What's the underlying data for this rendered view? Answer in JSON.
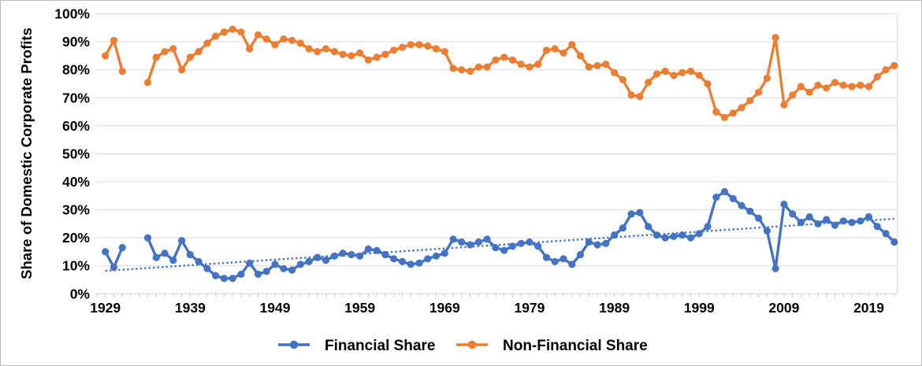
{
  "chart": {
    "y_axis_title": "Share of Domestic Corporate Profits",
    "legend": [
      {
        "label": "Financial Share",
        "color": "#4472C4"
      },
      {
        "label": "Non-Financial Share",
        "color": "#ED7D31"
      }
    ],
    "colors": {
      "financial": "#4472C4",
      "nonfinancial": "#ED7D31",
      "trendline": "#4472C4",
      "gridline": "#D9D9D9",
      "tick": "#C8C8C8",
      "text": "#000000"
    }
  },
  "chart_data": {
    "type": "line",
    "title": "",
    "xlabel": "",
    "ylabel": "Share of Domestic Corporate Profits",
    "ylim": [
      0,
      100
    ],
    "xlim": [
      1928,
      2023
    ],
    "grid": true,
    "legend_position": "bottom",
    "y_tick_labels": [
      "0%",
      "10%",
      "20%",
      "30%",
      "40%",
      "50%",
      "60%",
      "70%",
      "80%",
      "90%",
      "100%"
    ],
    "x_tick_labels": [
      1929,
      1939,
      1949,
      1959,
      1969,
      1979,
      1989,
      1999,
      2009,
      2019
    ],
    "note": "values are percent; nulls in 1932-1933 are missing data (line gap)",
    "x": [
      1929,
      1930,
      1931,
      1932,
      1933,
      1934,
      1935,
      1936,
      1937,
      1938,
      1939,
      1940,
      1941,
      1942,
      1943,
      1944,
      1945,
      1946,
      1947,
      1948,
      1949,
      1950,
      1951,
      1952,
      1953,
      1954,
      1955,
      1956,
      1957,
      1958,
      1959,
      1960,
      1961,
      1962,
      1963,
      1964,
      1965,
      1966,
      1967,
      1968,
      1969,
      1970,
      1971,
      1972,
      1973,
      1974,
      1975,
      1976,
      1977,
      1978,
      1979,
      1980,
      1981,
      1982,
      1983,
      1984,
      1985,
      1986,
      1987,
      1988,
      1989,
      1990,
      1991,
      1992,
      1993,
      1994,
      1995,
      1996,
      1997,
      1998,
      1999,
      2000,
      2001,
      2002,
      2003,
      2004,
      2005,
      2006,
      2007,
      2008,
      2009,
      2010,
      2011,
      2012,
      2013,
      2014,
      2015,
      2016,
      2017,
      2018,
      2019,
      2020,
      2021,
      2022
    ],
    "series": [
      {
        "name": "Financial Share",
        "key": "financial",
        "color": "#4472C4",
        "values": [
          15,
          9.5,
          16.5,
          null,
          null,
          20,
          13,
          14.5,
          12,
          19,
          14,
          11.5,
          9,
          6.5,
          5.5,
          5.5,
          7,
          11,
          7,
          8,
          10.5,
          9,
          8.5,
          10.5,
          11.5,
          13,
          12,
          13.5,
          14.5,
          14,
          13.5,
          16,
          15.5,
          14,
          12.5,
          11.5,
          10.5,
          11,
          12.5,
          13.5,
          14.5,
          19.5,
          18.5,
          17.5,
          18.5,
          19.5,
          16.5,
          15.5,
          17,
          18,
          18.5,
          17,
          13,
          11.5,
          12.5,
          10.5,
          14,
          18.5,
          17.5,
          18,
          21,
          23.5,
          28.5,
          29,
          24,
          21,
          20,
          20.5,
          21,
          20,
          21.5,
          24,
          34.5,
          36.5,
          34,
          31.5,
          29.5,
          27,
          22.5,
          9,
          32,
          28.5,
          25.5,
          27.5,
          25,
          26.5,
          24.5,
          26,
          25.5,
          26,
          27.5,
          24,
          21.5,
          18.5
        ]
      },
      {
        "name": "Non-Financial Share",
        "key": "nonfinancial",
        "color": "#ED7D31",
        "values": [
          85,
          90.5,
          79.5,
          null,
          null,
          75.5,
          84.5,
          86.5,
          87.5,
          80,
          84.5,
          86.5,
          89.5,
          92,
          93.5,
          94.5,
          93.5,
          87.5,
          92.5,
          91,
          89,
          91,
          90.5,
          89.5,
          87.5,
          86.5,
          87.5,
          86.5,
          85.5,
          85,
          86,
          83.5,
          84.5,
          85.5,
          87,
          88,
          89,
          89,
          88.5,
          87.5,
          86.5,
          80.5,
          80,
          79.5,
          81,
          81,
          83.5,
          84.5,
          83.5,
          82,
          81,
          82,
          87,
          87.5,
          86,
          89,
          85,
          81,
          81.5,
          82,
          79,
          76.5,
          71,
          70.5,
          75.5,
          78.5,
          79.5,
          78,
          79,
          79.5,
          78,
          75,
          65,
          63,
          64.5,
          66.5,
          69,
          72,
          77,
          91.5,
          67.5,
          71,
          74,
          72,
          74.5,
          73.5,
          75.5,
          74.5,
          74,
          74.5,
          74,
          77.5,
          80,
          81.5
        ]
      }
    ],
    "trendline": {
      "series": "Financial Share",
      "style": "dotted",
      "color": "#4472C4",
      "x_start": 1929,
      "y_start": 8.2,
      "x_end": 2022,
      "y_end": 26.8
    }
  }
}
